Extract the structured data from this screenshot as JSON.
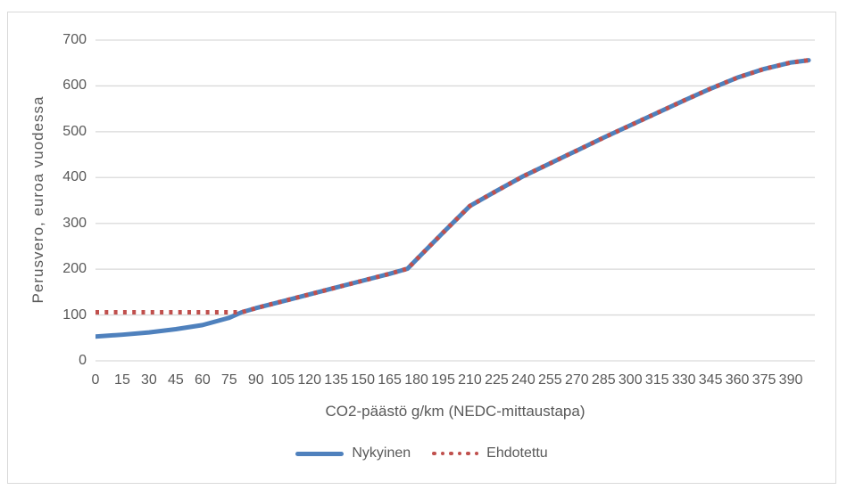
{
  "chart_data": {
    "type": "line",
    "title": "",
    "xlabel": "CO2-päästö g/km (NEDC-mittaustapa)",
    "ylabel": "Perusvero, euroa vuodessa",
    "xlim": [
      0,
      403.5
    ],
    "ylim": [
      0,
      700
    ],
    "y_ticks": [
      0,
      100,
      200,
      300,
      400,
      500,
      600,
      700
    ],
    "x_ticks": [
      0,
      15,
      30,
      45,
      60,
      75,
      90,
      105,
      120,
      135,
      150,
      165,
      180,
      195,
      210,
      225,
      240,
      255,
      270,
      285,
      300,
      315,
      330,
      345,
      360,
      375,
      390
    ],
    "grid": "horizontal",
    "legend_position": "bottom",
    "x": [
      0,
      15,
      30,
      45,
      60,
      75,
      82,
      90,
      105,
      120,
      135,
      150,
      165,
      175,
      180,
      195,
      210,
      225,
      240,
      255,
      270,
      285,
      300,
      315,
      330,
      345,
      360,
      375,
      390,
      400
    ],
    "series": [
      {
        "name": "Nykyinen",
        "style": "solid",
        "color": "#4F81BD",
        "values": [
          53,
          57,
          62,
          69,
          78,
          94,
          106,
          115,
          130,
          145,
          160,
          175,
          190,
          201,
          221,
          280,
          338,
          371,
          403,
          431,
          459,
          487,
          514,
          541,
          568,
          594,
          618,
          637,
          651,
          656
        ]
      },
      {
        "name": "Ehdotettu",
        "style": "dotted",
        "color": "#C0504D",
        "values": [
          106,
          106,
          106,
          106,
          106,
          106,
          106,
          115,
          130,
          145,
          160,
          175,
          190,
          201,
          221,
          280,
          338,
          371,
          403,
          431,
          459,
          487,
          514,
          541,
          568,
          594,
          618,
          637,
          651,
          656
        ]
      }
    ]
  },
  "colors": {
    "gridline": "#D9D9D9",
    "axis_text": "#595959",
    "frame_border": "#D9D9D9",
    "background": "#FFFFFF"
  }
}
